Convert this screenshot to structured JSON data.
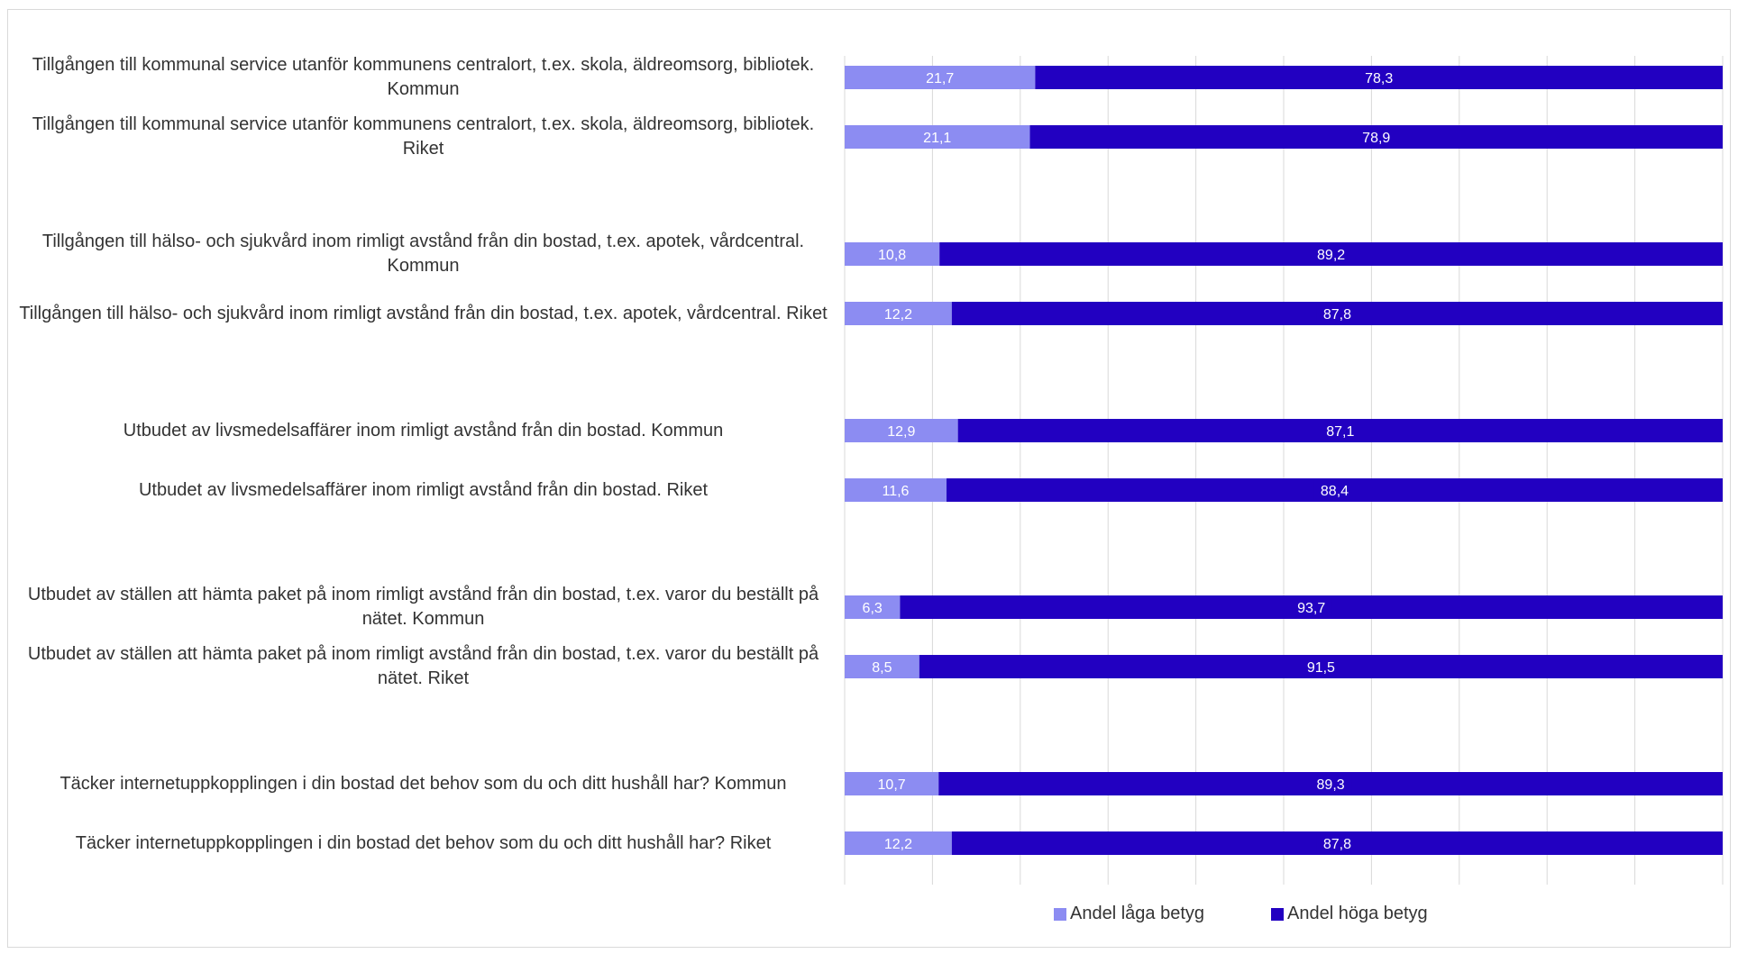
{
  "chart_data": {
    "type": "bar",
    "orientation": "horizontal",
    "stacked": true,
    "percent_stacked": true,
    "xlim": [
      0,
      100
    ],
    "grid": true,
    "legend_position": "bottom",
    "categories": [
      "Tillgången till kommunal service utanför kommunens centralort, t.ex. skola, äldreomsorg, bibliotek. Kommun",
      "Tillgången till kommunal service utanför kommunens centralort, t.ex. skola, äldreomsorg, bibliotek. Riket",
      "Tillgången till hälso- och sjukvård inom rimligt avstånd från din bostad, t.ex. apotek, vårdcentral. Kommun",
      "Tillgången till hälso- och sjukvård inom rimligt avstånd från din bostad, t.ex. apotek, vårdcentral. Riket",
      "Utbudet av livsmedelsaffärer inom rimligt avstånd från din bostad. Kommun",
      "Utbudet av livsmedelsaffärer inom rimligt avstånd från din bostad. Riket",
      "Utbudet av ställen att hämta paket på inom rimligt avstånd från din bostad, t.ex. varor du beställt på nätet. Kommun",
      "Utbudet av ställen att hämta paket på inom rimligt avstånd från din bostad, t.ex. varor du beställt på nätet. Riket",
      "Täcker internetuppkopplingen i din bostad det behov som du och ditt hushåll har? Kommun",
      "Täcker internetuppkopplingen i din bostad det behov som du och ditt hushåll har? Riket"
    ],
    "series": [
      {
        "name": "Andel låga betyg",
        "color": "#8c8cf2",
        "values": [
          21.7,
          21.1,
          10.8,
          12.2,
          12.9,
          11.6,
          6.3,
          8.5,
          10.7,
          12.2
        ],
        "labels": [
          "21,7",
          "21,1",
          "10,8",
          "12,2",
          "12,9",
          "11,6",
          "6,3",
          "8,5",
          "10,7",
          "12,2"
        ]
      },
      {
        "name": "Andel höga betyg",
        "color": "#2200c1",
        "values": [
          78.3,
          78.9,
          89.2,
          87.8,
          87.1,
          88.4,
          93.7,
          91.5,
          89.3,
          87.8
        ],
        "labels": [
          "78,3",
          "78,9",
          "89,2",
          "87,8",
          "87,1",
          "88,4",
          "93,7",
          "91,5",
          "89,3",
          "87,8"
        ]
      }
    ],
    "title": "",
    "xlabel": "",
    "ylabel": ""
  }
}
